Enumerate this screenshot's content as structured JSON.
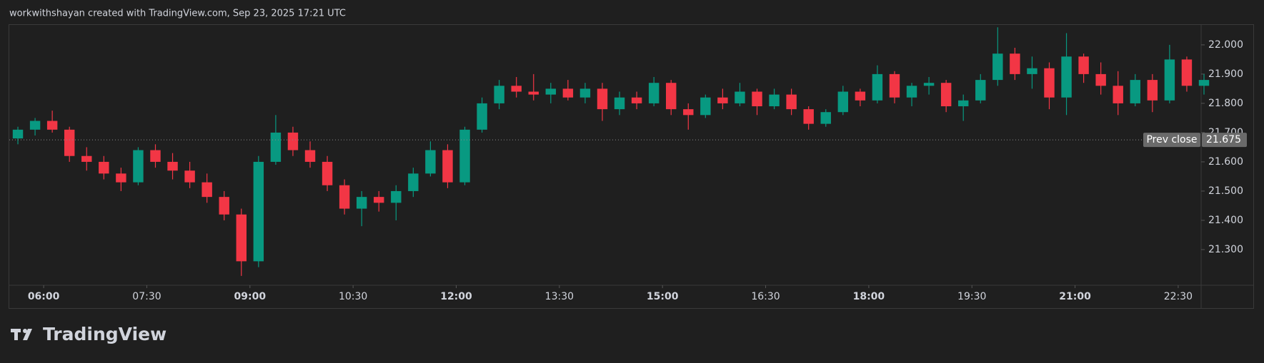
{
  "chart_data": {
    "type": "candlestick",
    "header": "workwithshayan created with TradingView.com, Sep 23, 2025 17:21 UTC",
    "brand": "TradingView",
    "up_color": "#089981",
    "down_color": "#f23645",
    "xlim": [
      "05:30",
      "22:50"
    ],
    "xticks": [
      "06:00",
      "07:30",
      "09:00",
      "10:30",
      "12:00",
      "13:30",
      "15:00",
      "16:30",
      "18:00",
      "19:30",
      "21:00",
      "22:30"
    ],
    "ylim": [
      21.178,
      22.068
    ],
    "yticks": [
      {
        "value": 21.3,
        "label": "21.300"
      },
      {
        "value": 21.4,
        "label": "21.400"
      },
      {
        "value": 21.5,
        "label": "21.500"
      },
      {
        "value": 21.6,
        "label": "21.600"
      },
      {
        "value": 21.7,
        "label": "21.700"
      },
      {
        "value": 21.8,
        "label": "21.800"
      },
      {
        "value": 21.9,
        "label": "21.900"
      },
      {
        "value": 22,
        "label": "22.000"
      }
    ],
    "prev_close": {
      "label": "Prev close",
      "value": 21.675
    },
    "x": [
      "05:30",
      "05:45",
      "06:00",
      "06:15",
      "06:30",
      "06:45",
      "07:00",
      "07:15",
      "07:30",
      "07:45",
      "08:00",
      "08:15",
      "08:30",
      "08:45",
      "09:00",
      "09:15",
      "09:30",
      "09:45",
      "10:00",
      "10:15",
      "10:30",
      "10:45",
      "11:00",
      "11:15",
      "11:30",
      "11:45",
      "12:00",
      "12:15",
      "12:30",
      "12:45",
      "13:00",
      "13:15",
      "13:30",
      "13:45",
      "14:00",
      "14:15",
      "14:30",
      "14:45",
      "15:00",
      "15:15",
      "15:30",
      "15:45",
      "16:00",
      "16:15",
      "16:30",
      "16:45",
      "17:00",
      "17:15",
      "17:30",
      "17:45",
      "18:00",
      "18:15",
      "18:30",
      "18:45",
      "19:00",
      "19:15",
      "19:30",
      "19:45",
      "20:00",
      "20:15",
      "20:30",
      "20:45",
      "21:00",
      "21:15",
      "21:30",
      "21:45",
      "22:00",
      "22:15",
      "22:30",
      "22:45"
    ],
    "candles": [
      [
        21.68,
        21.72,
        21.66,
        21.71
      ],
      [
        21.71,
        21.75,
        21.69,
        21.74
      ],
      [
        21.74,
        21.775,
        21.7,
        21.71
      ],
      [
        21.71,
        21.72,
        21.6,
        21.62
      ],
      [
        21.62,
        21.65,
        21.57,
        21.6
      ],
      [
        21.6,
        21.62,
        21.54,
        21.56
      ],
      [
        21.56,
        21.58,
        21.5,
        21.53
      ],
      [
        21.53,
        21.65,
        21.52,
        21.64
      ],
      [
        21.64,
        21.66,
        21.58,
        21.6
      ],
      [
        21.6,
        21.63,
        21.54,
        21.57
      ],
      [
        21.57,
        21.6,
        21.51,
        21.53
      ],
      [
        21.53,
        21.56,
        21.46,
        21.48
      ],
      [
        21.48,
        21.5,
        21.4,
        21.42
      ],
      [
        21.42,
        21.44,
        21.21,
        21.26
      ],
      [
        21.26,
        21.62,
        21.24,
        21.6
      ],
      [
        21.6,
        21.76,
        21.59,
        21.7
      ],
      [
        21.7,
        21.72,
        21.62,
        21.64
      ],
      [
        21.64,
        21.67,
        21.58,
        21.6
      ],
      [
        21.6,
        21.62,
        21.5,
        21.52
      ],
      [
        21.52,
        21.54,
        21.42,
        21.44
      ],
      [
        21.44,
        21.5,
        21.38,
        21.48
      ],
      [
        21.48,
        21.5,
        21.43,
        21.46
      ],
      [
        21.46,
        21.52,
        21.4,
        21.5
      ],
      [
        21.5,
        21.58,
        21.48,
        21.56
      ],
      [
        21.56,
        21.67,
        21.55,
        21.64
      ],
      [
        21.64,
        21.66,
        21.51,
        21.53
      ],
      [
        21.53,
        21.72,
        21.52,
        21.71
      ],
      [
        21.71,
        21.82,
        21.7,
        21.8
      ],
      [
        21.8,
        21.88,
        21.78,
        21.86
      ],
      [
        21.86,
        21.89,
        21.82,
        21.84
      ],
      [
        21.84,
        21.9,
        21.81,
        21.83
      ],
      [
        21.83,
        21.87,
        21.8,
        21.85
      ],
      [
        21.85,
        21.88,
        21.81,
        21.82
      ],
      [
        21.82,
        21.87,
        21.8,
        21.85
      ],
      [
        21.85,
        21.87,
        21.74,
        21.78
      ],
      [
        21.78,
        21.84,
        21.76,
        21.82
      ],
      [
        21.82,
        21.84,
        21.78,
        21.8
      ],
      [
        21.8,
        21.89,
        21.79,
        21.87
      ],
      [
        21.87,
        21.88,
        21.76,
        21.78
      ],
      [
        21.78,
        21.8,
        21.71,
        21.76
      ],
      [
        21.76,
        21.83,
        21.75,
        21.82
      ],
      [
        21.82,
        21.85,
        21.78,
        21.8
      ],
      [
        21.8,
        21.87,
        21.79,
        21.84
      ],
      [
        21.84,
        21.85,
        21.76,
        21.79
      ],
      [
        21.79,
        21.85,
        21.78,
        21.83
      ],
      [
        21.83,
        21.85,
        21.76,
        21.78
      ],
      [
        21.78,
        21.79,
        21.71,
        21.73
      ],
      [
        21.73,
        21.78,
        21.72,
        21.77
      ],
      [
        21.77,
        21.86,
        21.76,
        21.84
      ],
      [
        21.84,
        21.85,
        21.79,
        21.81
      ],
      [
        21.81,
        21.93,
        21.8,
        21.9
      ],
      [
        21.9,
        21.91,
        21.8,
        21.82
      ],
      [
        21.82,
        21.87,
        21.79,
        21.86
      ],
      [
        21.86,
        21.89,
        21.83,
        21.87
      ],
      [
        21.87,
        21.88,
        21.77,
        21.79
      ],
      [
        21.79,
        21.83,
        21.74,
        21.81
      ],
      [
        21.81,
        21.9,
        21.8,
        21.88
      ],
      [
        21.88,
        22.06,
        21.86,
        21.97
      ],
      [
        21.97,
        21.99,
        21.88,
        21.9
      ],
      [
        21.9,
        21.96,
        21.85,
        21.92
      ],
      [
        21.92,
        21.94,
        21.78,
        21.82
      ],
      [
        21.82,
        22.04,
        21.76,
        21.96
      ],
      [
        21.96,
        21.97,
        21.87,
        21.9
      ],
      [
        21.9,
        21.94,
        21.83,
        21.86
      ],
      [
        21.86,
        21.91,
        21.76,
        21.8
      ],
      [
        21.8,
        21.9,
        21.79,
        21.88
      ],
      [
        21.88,
        21.9,
        21.77,
        21.81
      ],
      [
        21.81,
        22.0,
        21.8,
        21.95
      ],
      [
        21.95,
        21.96,
        21.84,
        21.86
      ],
      [
        21.86,
        21.9,
        21.83,
        21.88
      ]
    ]
  }
}
